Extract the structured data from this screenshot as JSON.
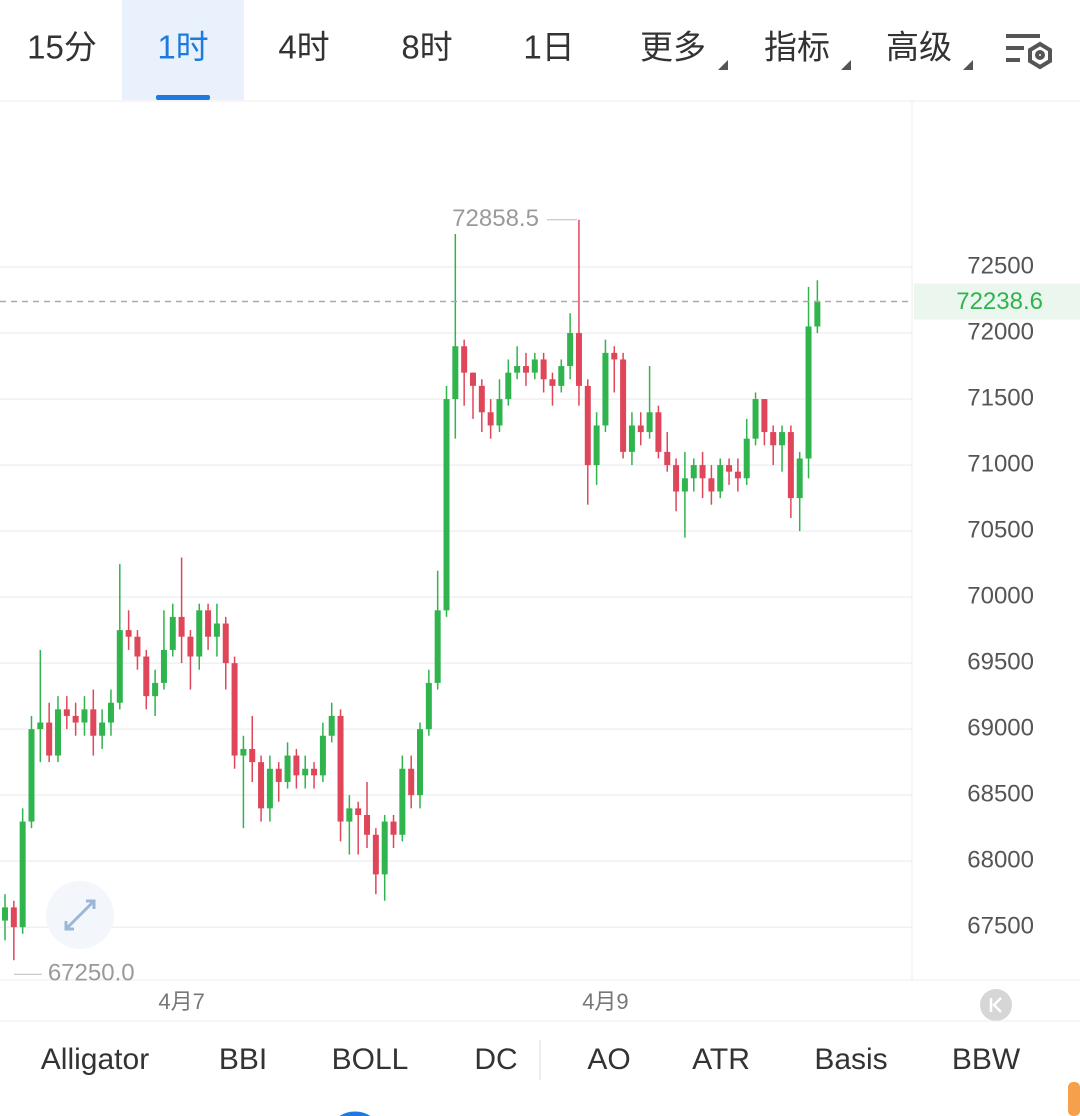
{
  "toolbar": {
    "tabs": [
      "15分",
      "1时",
      "4时",
      "8时",
      "1日"
    ],
    "menus": [
      "更多",
      "指标",
      "高级"
    ]
  },
  "indicators": [
    "Alligator",
    "BBI",
    "BOLL",
    "DC",
    "AO",
    "ATR",
    "Basis",
    "BBW"
  ],
  "chart_data": {
    "type": "candlestick",
    "categories": [
      null,
      null,
      null,
      null,
      null,
      null,
      null,
      null,
      null,
      null,
      null,
      null,
      null,
      null,
      null,
      null,
      null,
      null,
      null,
      null,
      "4月7",
      null,
      null,
      null,
      null,
      null,
      null,
      null,
      null,
      null,
      null,
      null,
      null,
      null,
      null,
      null,
      null,
      null,
      null,
      null,
      null,
      null,
      null,
      null,
      null,
      null,
      null,
      null,
      null,
      null,
      null,
      null,
      null,
      null,
      null,
      null,
      null,
      null,
      null,
      null,
      null,
      null,
      null,
      null,
      null,
      null,
      null,
      null,
      "4月9",
      null,
      null,
      null,
      null,
      null,
      null,
      null,
      null,
      null,
      null,
      null,
      null,
      null,
      null,
      null,
      null,
      null,
      null,
      null,
      null,
      null,
      null,
      null,
      null
    ],
    "open": [
      67550,
      67650,
      67500,
      68300,
      69000,
      69050,
      68800,
      69150,
      69100,
      69050,
      69150,
      68950,
      69050,
      69200,
      69750,
      69700,
      69550,
      69250,
      69350,
      69600,
      69850,
      69700,
      69550,
      69900,
      69700,
      69800,
      69500,
      68800,
      68850,
      68750,
      68400,
      68700,
      68600,
      68800,
      68650,
      68700,
      68650,
      68950,
      69100,
      68300,
      68400,
      68350,
      68200,
      67900,
      68300,
      68200,
      68700,
      68500,
      69000,
      69350,
      69900,
      71500,
      71900,
      71700,
      71600,
      71400,
      71300,
      71500,
      71700,
      71750,
      71700,
      71800,
      71650,
      71600,
      71750,
      72000,
      71600,
      71000,
      71300,
      71850,
      71800,
      71100,
      71300,
      71250,
      71400,
      71100,
      71000,
      70800,
      70900,
      71000,
      70900,
      70800,
      71000,
      70950,
      70900,
      71200,
      71500,
      71250,
      71150,
      71250,
      70750,
      71050,
      72050
    ],
    "high": [
      67750,
      67700,
      68400,
      69100,
      69600,
      69200,
      69250,
      69250,
      69200,
      69250,
      69300,
      69150,
      69300,
      70250,
      69900,
      69750,
      69600,
      69450,
      69900,
      69950,
      70300,
      69750,
      69950,
      69950,
      69950,
      69850,
      69550,
      68950,
      69100,
      68800,
      68800,
      68750,
      68900,
      68850,
      68800,
      68750,
      69050,
      69200,
      69150,
      68500,
      68450,
      68600,
      68250,
      68350,
      68350,
      68800,
      68800,
      69050,
      69450,
      70200,
      71600,
      72750,
      71950,
      71700,
      71650,
      71500,
      71650,
      71800,
      71900,
      71850,
      71850,
      71850,
      71700,
      71800,
      72150,
      72858.5,
      71650,
      71400,
      71950,
      71900,
      71850,
      71400,
      71400,
      71750,
      71450,
      71250,
      71050,
      71100,
      71050,
      71100,
      71000,
      71050,
      71050,
      71050,
      71350,
      71550,
      71500,
      71300,
      71300,
      71300,
      71100,
      72350,
      72400
    ],
    "low": [
      67400,
      67250,
      67450,
      68250,
      68750,
      68750,
      68750,
      69000,
      68950,
      68950,
      68800,
      68850,
      68950,
      69150,
      69600,
      69450,
      69150,
      69100,
      69300,
      69550,
      69500,
      69300,
      69450,
      69600,
      69550,
      69300,
      68700,
      68250,
      68600,
      68300,
      68300,
      68450,
      68550,
      68550,
      68550,
      68550,
      68600,
      68900,
      68150,
      68050,
      68050,
      68100,
      67750,
      67700,
      68100,
      68150,
      68400,
      68400,
      68950,
      69300,
      69850,
      71200,
      71450,
      71350,
      71250,
      71200,
      71250,
      71450,
      71650,
      71600,
      71650,
      71550,
      71450,
      71550,
      71650,
      71450,
      70700,
      70850,
      71250,
      71550,
      71050,
      71000,
      71150,
      71200,
      71050,
      70950,
      70650,
      70450,
      70800,
      70750,
      70700,
      70750,
      70850,
      70800,
      70850,
      71150,
      71150,
      71000,
      70950,
      70600,
      70500,
      70900,
      72000
    ],
    "close": [
      67650,
      67500,
      68300,
      69000,
      69050,
      68800,
      69150,
      69100,
      69050,
      69150,
      68950,
      69050,
      69200,
      69750,
      69700,
      69550,
      69250,
      69350,
      69600,
      69850,
      69700,
      69550,
      69900,
      69700,
      69800,
      69500,
      68800,
      68850,
      68750,
      68400,
      68700,
      68600,
      68800,
      68650,
      68700,
      68650,
      68950,
      69100,
      68300,
      68400,
      68350,
      68200,
      67900,
      68300,
      68200,
      68700,
      68500,
      69000,
      69350,
      69900,
      71500,
      71900,
      71700,
      71600,
      71400,
      71300,
      71500,
      71700,
      71750,
      71700,
      71800,
      71650,
      71600,
      71750,
      72000,
      71600,
      71000,
      71300,
      71850,
      71800,
      71100,
      71300,
      71250,
      71400,
      71100,
      71000,
      70800,
      70900,
      71000,
      70900,
      70800,
      71000,
      70950,
      70900,
      71200,
      71500,
      71250,
      71150,
      71250,
      70750,
      71050,
      72050,
      72238.6
    ],
    "up_color": "#2fb44e",
    "down_color": "#e0465a",
    "ylim": [
      67100,
      73750
    ],
    "yticks": [
      67500,
      68000,
      68500,
      69000,
      69500,
      70000,
      70500,
      71000,
      71500,
      72000,
      72500
    ],
    "grid": true,
    "max_label": 72858.5,
    "min_label": {
      "value": 67250,
      "label": "67250.0"
    },
    "last_price": 72238.6,
    "last_price_color": "#2fb44e"
  }
}
